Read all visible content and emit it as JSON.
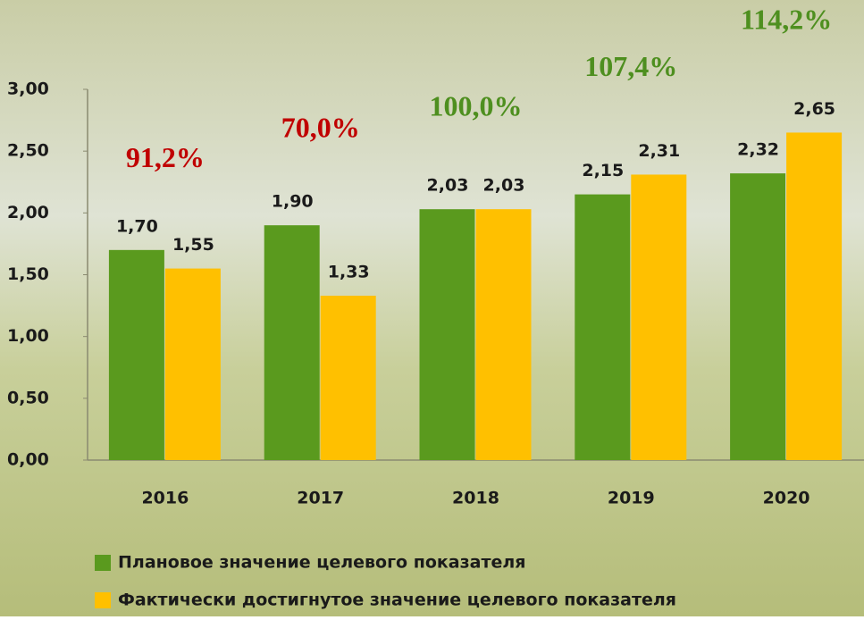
{
  "chart_data": {
    "type": "bar",
    "categories": [
      "2016",
      "2017",
      "2018",
      "2019",
      "2020"
    ],
    "series": [
      {
        "name": "Плановое значение целевого показателя",
        "color": "#5a9a1e",
        "values": [
          1.7,
          1.9,
          2.03,
          2.15,
          2.32
        ],
        "value_labels": [
          "1,70",
          "1,90",
          "2,03",
          "2,15",
          "2,32"
        ]
      },
      {
        "name": "Фактически достигнутое значение целевого показателя",
        "color": "#ffc000",
        "values": [
          1.55,
          1.33,
          2.03,
          2.31,
          2.65
        ],
        "value_labels": [
          "1,55",
          "1,33",
          "2,03",
          "2,31",
          "2,65"
        ]
      }
    ],
    "ylim": [
      0,
      3
    ],
    "yticks": [
      {
        "value": 0,
        "label": "0,00"
      },
      {
        "value": 0.5,
        "label": "0,50"
      },
      {
        "value": 1,
        "label": "1,00"
      },
      {
        "value": 1.5,
        "label": "1,50"
      },
      {
        "value": 2,
        "label": "2,00"
      },
      {
        "value": 2.5,
        "label": "2,50"
      },
      {
        "value": 3,
        "label": "3,00"
      }
    ],
    "annotations": [
      {
        "text": "91,2%",
        "x": "2016",
        "color": "#c00000"
      },
      {
        "text": "70,0%",
        "x": "2017",
        "color": "#c00000"
      },
      {
        "text": "100,0%",
        "x": "2018",
        "color": "#4e8f1f"
      },
      {
        "text": "107,4%",
        "x": "2019",
        "color": "#4e8f1f"
      },
      {
        "text": "114,2%",
        "x": "2020",
        "color": "#4e8f1f"
      }
    ]
  }
}
